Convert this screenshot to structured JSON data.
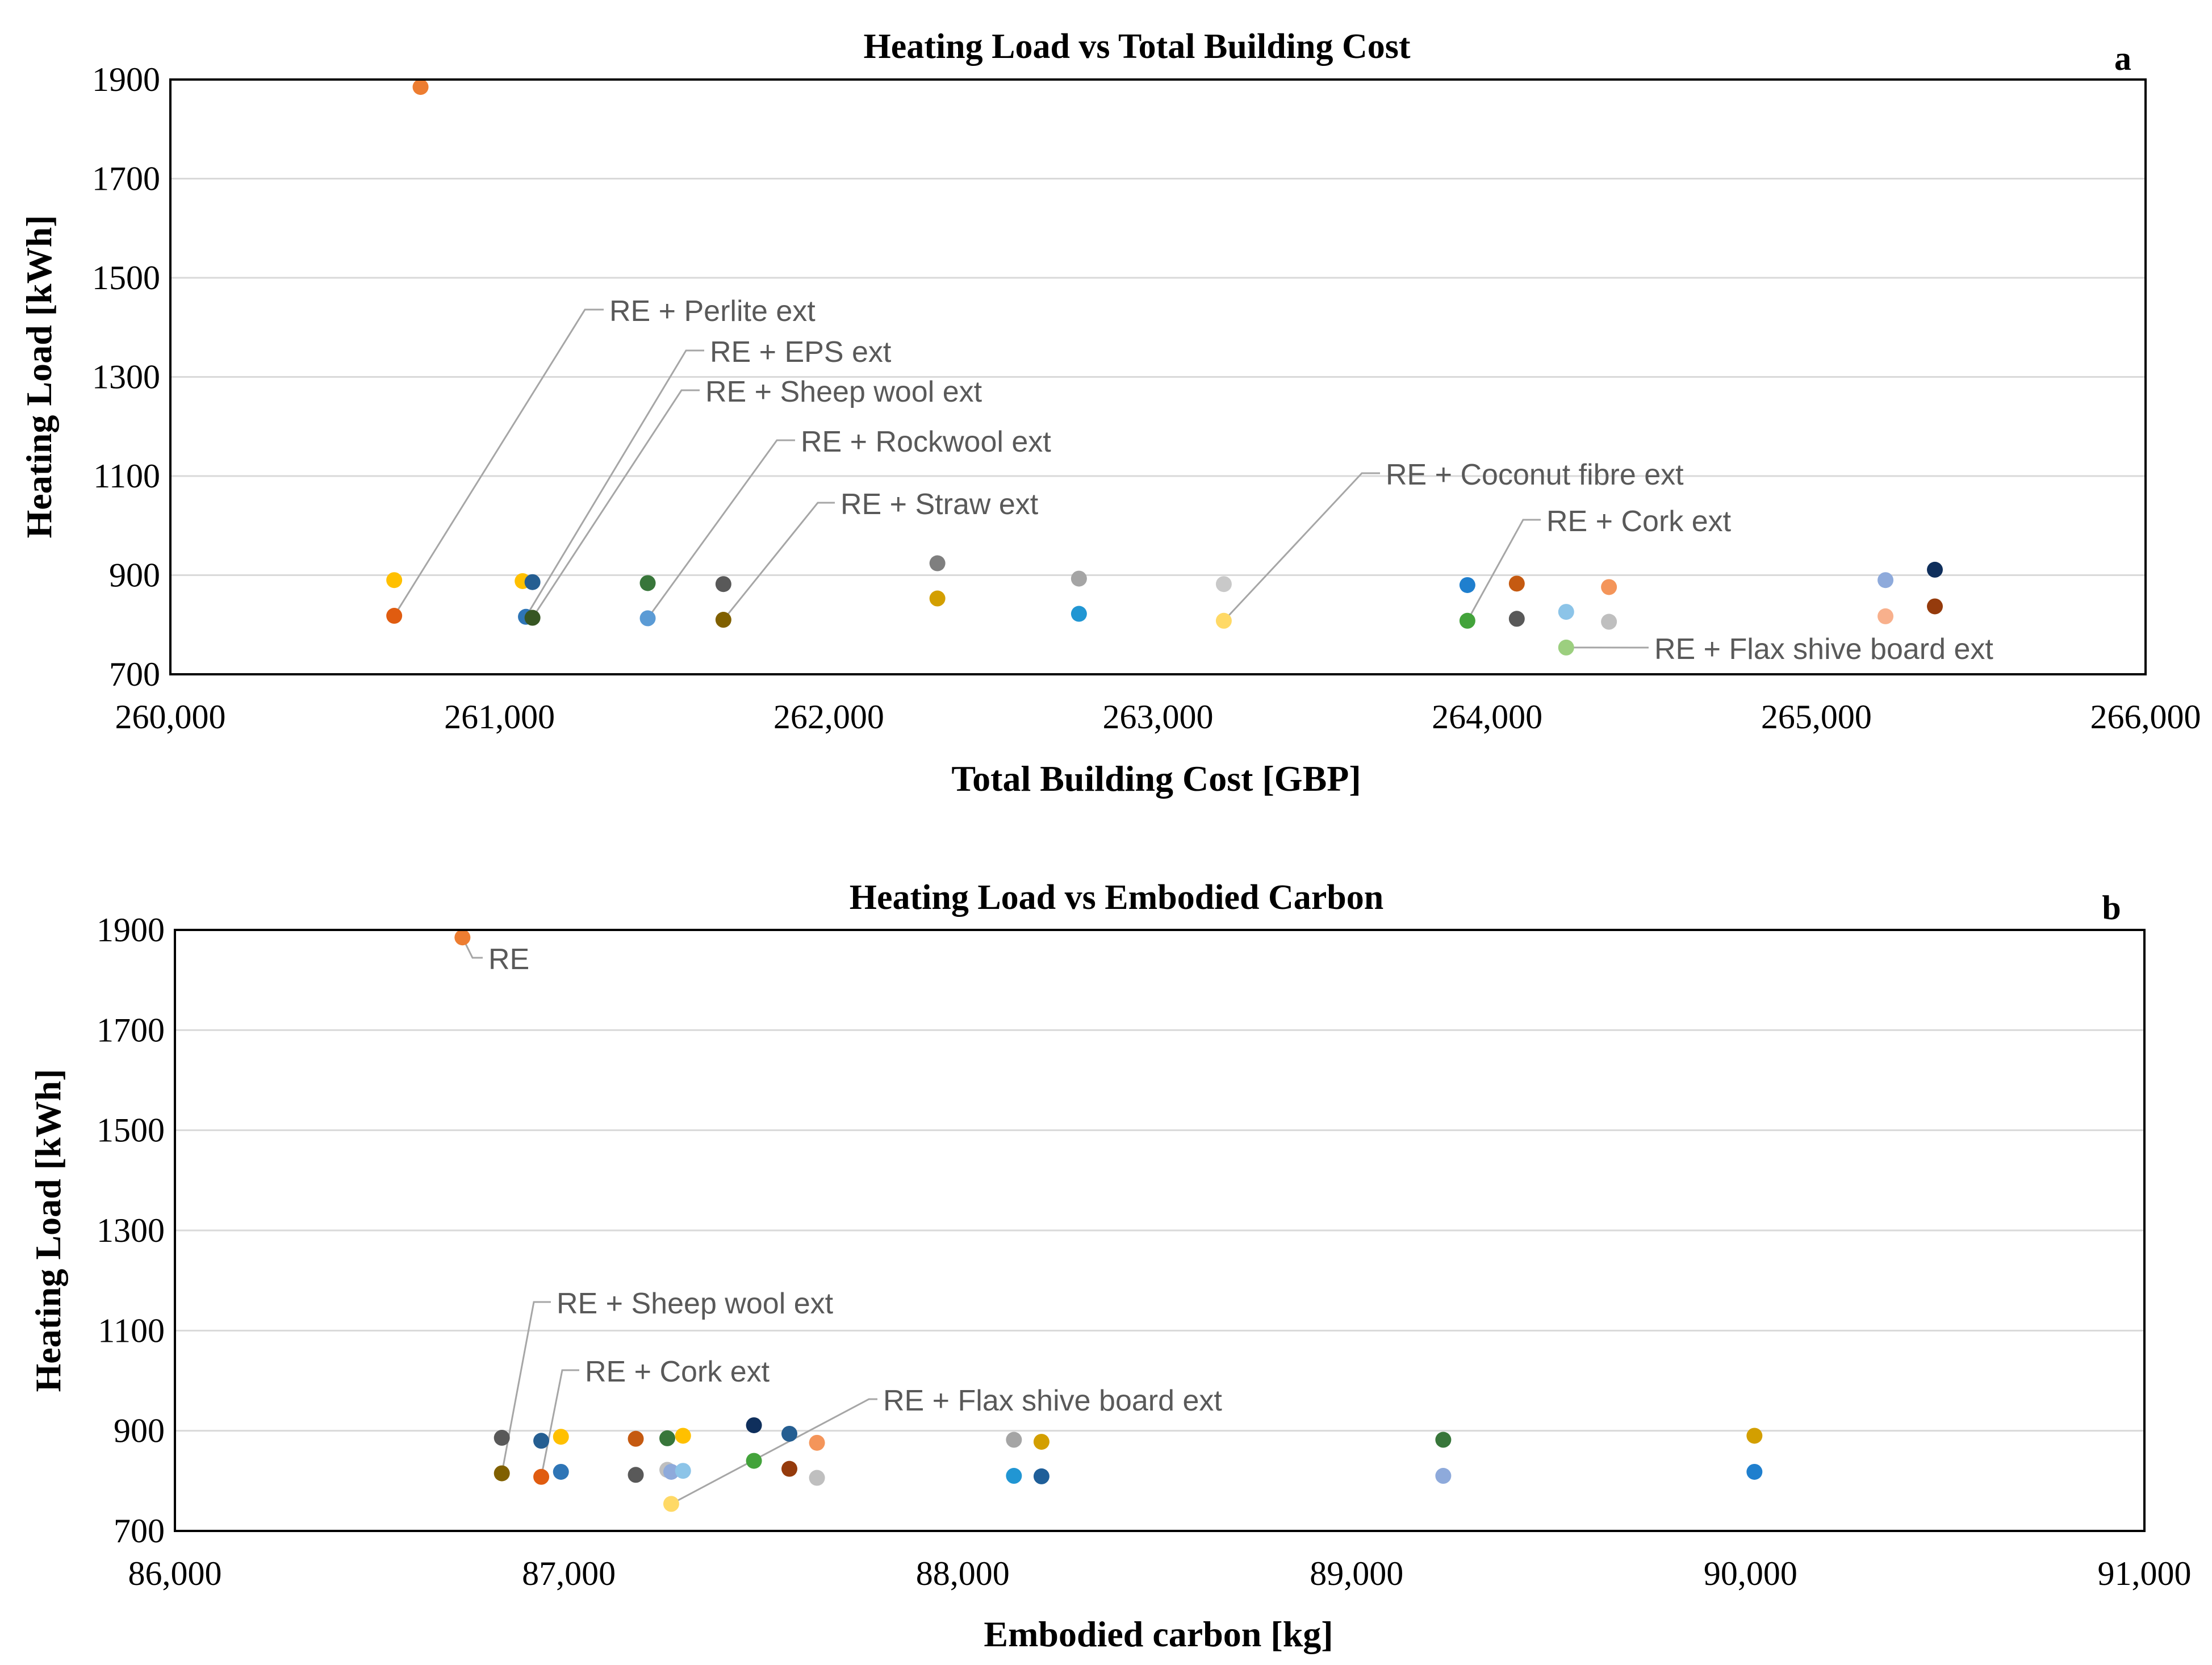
{
  "chart_data": [
    {
      "type": "scatter",
      "panel": "a",
      "title": "Heating Load vs Total Building Cost",
      "xlabel": "Total Building Cost [GBP]",
      "ylabel": "Heating Load [kWh]",
      "xlim": [
        260000,
        266000
      ],
      "ylim": [
        700,
        1900
      ],
      "xticks": [
        260000,
        261000,
        262000,
        263000,
        264000,
        265000,
        266000
      ],
      "xtick_labels": [
        "260,000",
        "261,000",
        "262,000",
        "263,000",
        "264,000",
        "265,000",
        "266,000"
      ],
      "yticks": [
        700,
        900,
        1100,
        1300,
        1500,
        1700,
        1900
      ],
      "ytick_labels": [
        "700",
        "900",
        "1100",
        "1300",
        "1500",
        "1700",
        "1900"
      ],
      "points": [
        {
          "x": 260760,
          "y": 1885,
          "color": "#ed7d31"
        },
        {
          "x": 260680,
          "y": 890,
          "color": "#ffc000"
        },
        {
          "x": 260680,
          "y": 818,
          "color": "#e05c10"
        },
        {
          "x": 261070,
          "y": 888,
          "color": "#ffc000"
        },
        {
          "x": 261100,
          "y": 886,
          "color": "#255e91"
        },
        {
          "x": 261080,
          "y": 816,
          "color": "#2e75b6"
        },
        {
          "x": 261100,
          "y": 814,
          "color": "#375623"
        },
        {
          "x": 261450,
          "y": 884,
          "color": "#38763a"
        },
        {
          "x": 261450,
          "y": 813,
          "color": "#5b9bd5"
        },
        {
          "x": 261680,
          "y": 882,
          "color": "#595959"
        },
        {
          "x": 261680,
          "y": 810,
          "color": "#806000"
        },
        {
          "x": 262330,
          "y": 924,
          "color": "#7f7f7f"
        },
        {
          "x": 262330,
          "y": 853,
          "color": "#d39f00"
        },
        {
          "x": 262760,
          "y": 893,
          "color": "#a5a5a5"
        },
        {
          "x": 262760,
          "y": 822,
          "color": "#2196d3"
        },
        {
          "x": 263200,
          "y": 882,
          "color": "#c9c9c9"
        },
        {
          "x": 263200,
          "y": 808,
          "color": "#ffd966"
        },
        {
          "x": 263940,
          "y": 880,
          "color": "#1f7fce"
        },
        {
          "x": 263940,
          "y": 808,
          "color": "#43a33b"
        },
        {
          "x": 264090,
          "y": 883,
          "color": "#c55a11"
        },
        {
          "x": 264090,
          "y": 812,
          "color": "#595959"
        },
        {
          "x": 264240,
          "y": 826,
          "color": "#8cc4e8"
        },
        {
          "x": 264240,
          "y": 754,
          "color": "#9ccf7f"
        },
        {
          "x": 264370,
          "y": 876,
          "color": "#f4955a"
        },
        {
          "x": 264370,
          "y": 806,
          "color": "#bfbfbf"
        },
        {
          "x": 265210,
          "y": 890,
          "color": "#8eaadb"
        },
        {
          "x": 265210,
          "y": 817,
          "color": "#f8b08c"
        },
        {
          "x": 265360,
          "y": 911,
          "color": "#0f2f5c"
        },
        {
          "x": 265360,
          "y": 837,
          "color": "#953b0c"
        }
      ],
      "annotations": [
        {
          "text": "RE + Perlite ext",
          "x": 260680,
          "y": 818
        },
        {
          "text": "RE + EPS ext",
          "x": 261080,
          "y": 816
        },
        {
          "text": "RE + Sheep wool ext",
          "x": 261100,
          "y": 814
        },
        {
          "text": "RE + Rockwool ext",
          "x": 261450,
          "y": 813
        },
        {
          "text": "RE + Straw ext",
          "x": 261680,
          "y": 810
        },
        {
          "text": "RE + Coconut fibre ext",
          "x": 263200,
          "y": 808
        },
        {
          "text": "RE + Cork ext",
          "x": 263940,
          "y": 808
        },
        {
          "text": "RE + Flax shive board ext",
          "x": 264240,
          "y": 754
        }
      ]
    },
    {
      "type": "scatter",
      "panel": "b",
      "title": "Heating Load vs Embodied Carbon",
      "xlabel": "Embodied carbon [kg]",
      "ylabel": "Heating Load [kWh]",
      "xlim": [
        86000,
        91000
      ],
      "ylim": [
        700,
        1900
      ],
      "xticks": [
        86000,
        87000,
        88000,
        89000,
        90000,
        91000
      ],
      "xtick_labels": [
        "86,000",
        "87,000",
        "88,000",
        "89,000",
        "90,000",
        "91,000"
      ],
      "yticks": [
        700,
        900,
        1100,
        1300,
        1500,
        1700,
        1900
      ],
      "ytick_labels": [
        "700",
        "900",
        "1100",
        "1300",
        "1500",
        "1700",
        "1900"
      ],
      "points": [
        {
          "x": 86730,
          "y": 1885,
          "color": "#ed7d31"
        },
        {
          "x": 86830,
          "y": 886,
          "color": "#595959"
        },
        {
          "x": 86830,
          "y": 815,
          "color": "#806000"
        },
        {
          "x": 86930,
          "y": 880,
          "color": "#255e91"
        },
        {
          "x": 86930,
          "y": 808,
          "color": "#e05c10"
        },
        {
          "x": 86980,
          "y": 888,
          "color": "#ffc000"
        },
        {
          "x": 86980,
          "y": 818,
          "color": "#2e75b6"
        },
        {
          "x": 87170,
          "y": 884,
          "color": "#c55a11"
        },
        {
          "x": 87170,
          "y": 812,
          "color": "#595959"
        },
        {
          "x": 87250,
          "y": 885,
          "color": "#38763a"
        },
        {
          "x": 87250,
          "y": 822,
          "color": "#bfbfbf"
        },
        {
          "x": 87260,
          "y": 818,
          "color": "#8eaadb"
        },
        {
          "x": 87290,
          "y": 890,
          "color": "#ffc000"
        },
        {
          "x": 87290,
          "y": 820,
          "color": "#8cc4e8"
        },
        {
          "x": 87260,
          "y": 754,
          "color": "#ffd966"
        },
        {
          "x": 87470,
          "y": 911,
          "color": "#0f2f5c"
        },
        {
          "x": 87470,
          "y": 840,
          "color": "#43a33b"
        },
        {
          "x": 87560,
          "y": 894,
          "color": "#255e91"
        },
        {
          "x": 87560,
          "y": 824,
          "color": "#953b0c"
        },
        {
          "x": 87630,
          "y": 876,
          "color": "#f4955a"
        },
        {
          "x": 87630,
          "y": 806,
          "color": "#bfbfbf"
        },
        {
          "x": 88130,
          "y": 882,
          "color": "#a5a5a5"
        },
        {
          "x": 88130,
          "y": 810,
          "color": "#2196d3"
        },
        {
          "x": 88200,
          "y": 878,
          "color": "#d39f00"
        },
        {
          "x": 88200,
          "y": 809,
          "color": "#1f5f99"
        },
        {
          "x": 89220,
          "y": 882,
          "color": "#38763a"
        },
        {
          "x": 89220,
          "y": 810,
          "color": "#8eaadb"
        },
        {
          "x": 90010,
          "y": 890,
          "color": "#d39f00"
        },
        {
          "x": 90010,
          "y": 818,
          "color": "#1f7fce"
        }
      ],
      "annotations": [
        {
          "text": "RE",
          "x": 86730,
          "y": 1885
        },
        {
          "text": "RE + Sheep wool ext",
          "x": 86830,
          "y": 815
        },
        {
          "text": "RE + Cork ext",
          "x": 86930,
          "y": 808
        },
        {
          "text": "RE + Flax shive board ext",
          "x": 87260,
          "y": 754
        }
      ]
    }
  ]
}
